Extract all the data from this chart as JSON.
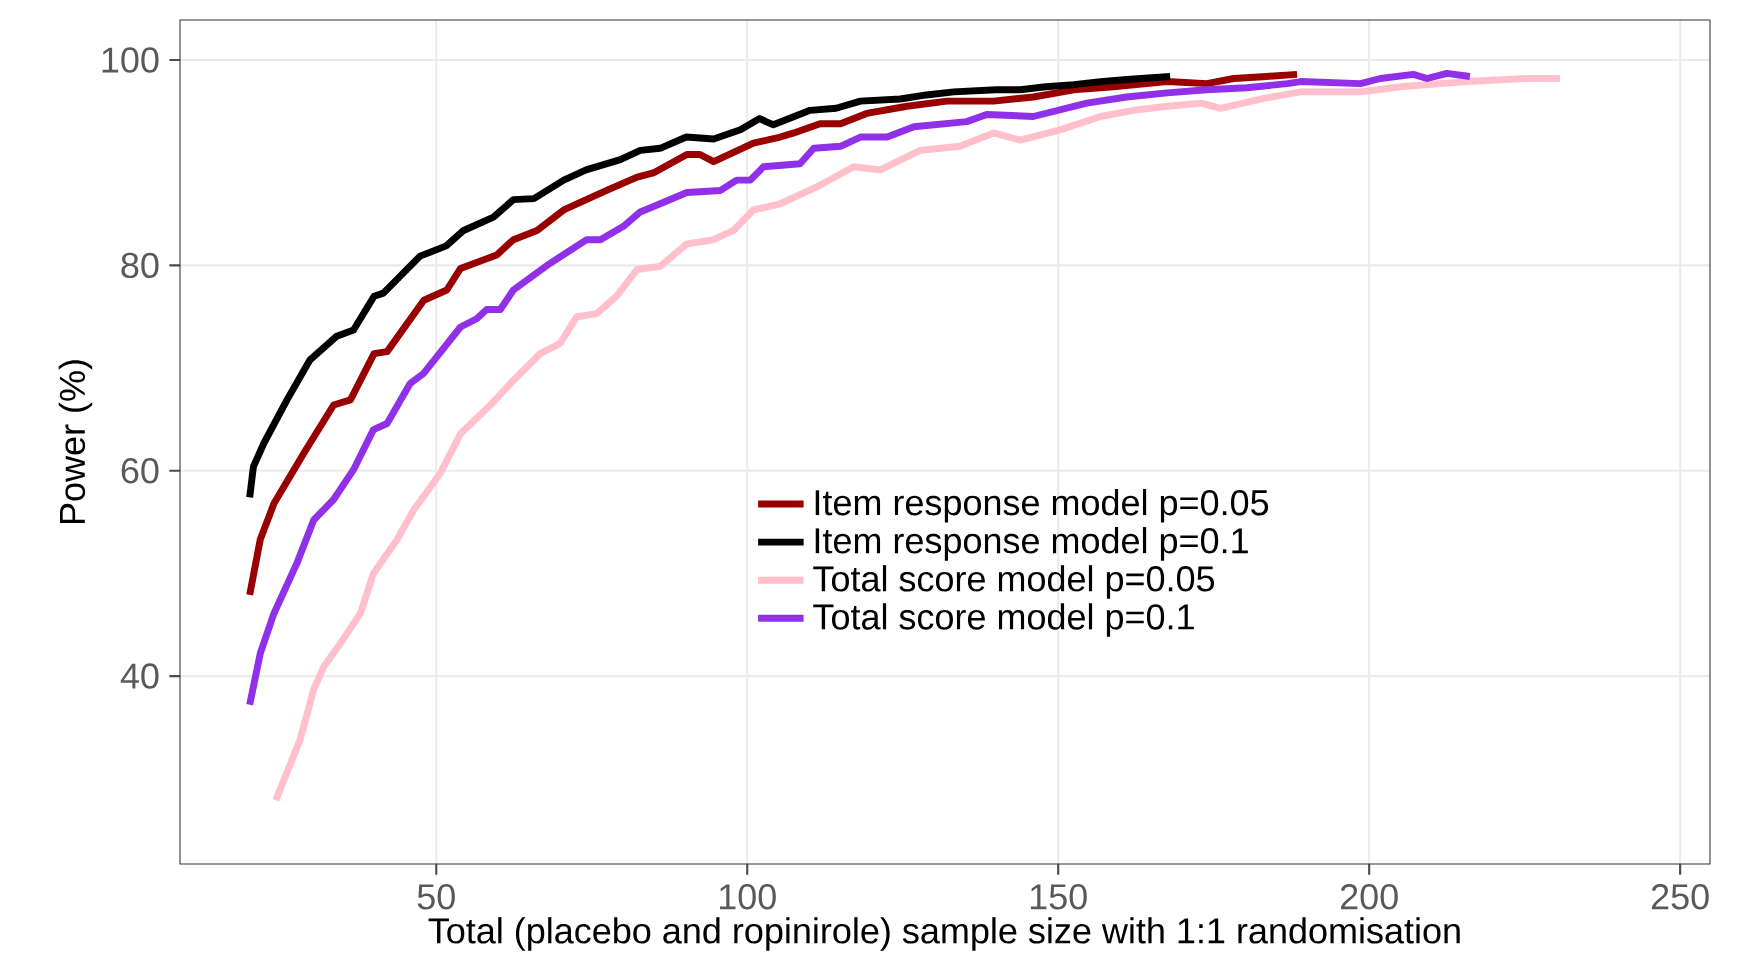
{
  "chart_data": {
    "type": "line",
    "xlabel": "Total (placebo and ropinirole) sample size with 1:1 randomisation",
    "ylabel": "Power (%)",
    "xlim": [
      8.8,
      254.8
    ],
    "ylim": [
      21.7,
      103.9
    ],
    "xticks": [
      50,
      100,
      150,
      200,
      250
    ],
    "yticks": [
      40,
      60,
      80,
      100
    ],
    "grid": true,
    "legend": "right",
    "marker": "none",
    "line_style": "solid",
    "series": [
      {
        "name": "Item response model p=0.05",
        "color": "#990000",
        "x": [
          20,
          21.7,
          23.9,
          28.7,
          33.5,
          36.2,
          40,
          42.1,
          48,
          51.7,
          53.9,
          59.7,
          62.4,
          66.2,
          70.5,
          77.4,
          82.3,
          84.9,
          90.3,
          92.4,
          94.6,
          101,
          105.3,
          107.5,
          111.7,
          115,
          119.2,
          125.7,
          132.1,
          139.6,
          146,
          152.5,
          158.9,
          167.5,
          173.9,
          178.2,
          183.5,
          188.4
        ],
        "values": [
          47.9,
          53.3,
          56.8,
          61.7,
          66.4,
          66.9,
          71.4,
          71.6,
          76.6,
          77.6,
          79.7,
          81,
          82.5,
          83.4,
          85.4,
          87.3,
          88.6,
          89,
          90.8,
          90.8,
          90.1,
          91.9,
          92.5,
          92.9,
          93.8,
          93.8,
          94.8,
          95.5,
          96,
          96,
          96.4,
          97.1,
          97.4,
          97.9,
          97.7,
          98.2,
          98.4,
          98.6
        ]
      },
      {
        "name": "Item response model p=0.1",
        "color": "#000000",
        "x": [
          20,
          20.6,
          22.3,
          26,
          29.7,
          34,
          36.7,
          40,
          41.5,
          47.4,
          51.6,
          54.4,
          59.2,
          62.4,
          65.7,
          70.5,
          74.1,
          79.6,
          82.8,
          86,
          90.2,
          94.6,
          98.9,
          102,
          103,
          104.2,
          110.1,
          114.3,
          118.2,
          124.6,
          128.8,
          133.2,
          140,
          143.9,
          148,
          152.5,
          156.8,
          161,
          168
        ],
        "values": [
          57.4,
          60.4,
          62.7,
          66.9,
          70.8,
          73.1,
          73.7,
          77,
          77.3,
          80.9,
          81.9,
          83.4,
          84.7,
          86.4,
          86.5,
          88.3,
          89.3,
          90.3,
          91.2,
          91.4,
          92.5,
          92.3,
          93.2,
          94.3,
          94,
          93.7,
          95.1,
          95.3,
          96,
          96.2,
          96.6,
          96.9,
          97.1,
          97.1,
          97.4,
          97.6,
          97.9,
          98.1,
          98.4
        ]
      },
      {
        "name": "Total score model p=0.05",
        "color": "#ffc0cb",
        "x": [
          24.2,
          28.1,
          30.3,
          31.9,
          34.6,
          37.8,
          39.9,
          43.7,
          46.4,
          50.6,
          53.9,
          58.7,
          62.4,
          66.7,
          69.9,
          72.6,
          75.8,
          79,
          82.3,
          86,
          90.3,
          94.6,
          97.8,
          101,
          105.3,
          111.7,
          117.1,
          121.4,
          127.8,
          134.2,
          139.6,
          143.9,
          150.3,
          156.8,
          162.1,
          167.5,
          173,
          176.1,
          182.5,
          189,
          198.6,
          205,
          215.7,
          225.3,
          230.7
        ],
        "values": [
          27.9,
          33.8,
          38.7,
          40.9,
          43.2,
          46.1,
          50,
          53.3,
          56.2,
          59.7,
          63.6,
          66.4,
          68.8,
          71.4,
          72.4,
          75,
          75.3,
          77,
          79.6,
          79.9,
          82.1,
          82.5,
          83.4,
          85.4,
          86,
          87.8,
          89.6,
          89.3,
          91.2,
          91.6,
          92.9,
          92.2,
          93.2,
          94.5,
          95.1,
          95.5,
          95.8,
          95.3,
          96.2,
          96.9,
          96.9,
          97.4,
          97.9,
          98.2,
          98.2
        ]
      },
      {
        "name": "Total score model p=0.1",
        "color": "#9030e8",
        "x": [
          20,
          21.7,
          23.9,
          27.6,
          30.3,
          33.5,
          36.7,
          39.9,
          42.1,
          45.8,
          48,
          53.9,
          56.5,
          58.1,
          60.3,
          62.4,
          68.3,
          74.2,
          76.4,
          80.1,
          82.8,
          86,
          90.3,
          95.7,
          98.3,
          100.5,
          102.6,
          108.5,
          110.7,
          115,
          118.2,
          122.5,
          126.8,
          135.3,
          138.5,
          146,
          154.6,
          161,
          167.5,
          173.9,
          180.3,
          186.8,
          189,
          198.6,
          201.8,
          207.1,
          209.3,
          212.5,
          216.2
        ],
        "values": [
          37.2,
          42.2,
          46.1,
          51,
          55.2,
          57.2,
          60.1,
          64,
          64.6,
          68.5,
          69.5,
          74,
          74.8,
          75.7,
          75.7,
          77.6,
          80.2,
          82.5,
          82.5,
          83.8,
          85.2,
          86,
          87.1,
          87.3,
          88.3,
          88.3,
          89.6,
          89.9,
          91.4,
          91.6,
          92.5,
          92.5,
          93.5,
          94,
          94.7,
          94.5,
          95.8,
          96.4,
          96.8,
          97.1,
          97.3,
          97.7,
          97.9,
          97.7,
          98.2,
          98.6,
          98.2,
          98.7,
          98.4
        ]
      }
    ]
  }
}
